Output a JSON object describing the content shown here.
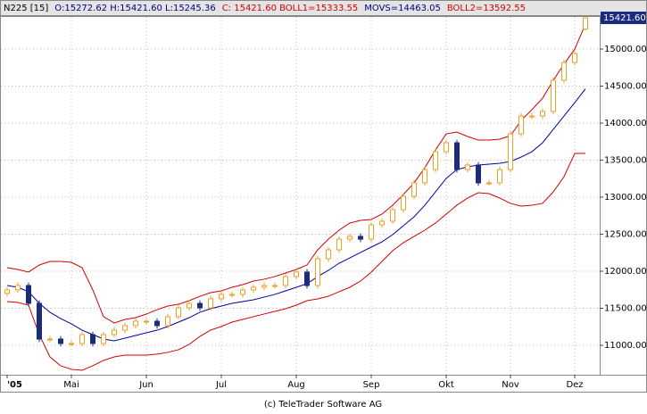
{
  "chart_data": {
    "type": "candlestick",
    "header": [
      "N225 [15]",
      "O:15272.62 H:15421.60 L:15245.36",
      "C: 15421.60 BOLL1=15333.55",
      "MOVS=14463.05",
      "BOLL2=13592.55"
    ],
    "header_colors": [
      "#000000",
      "#000080",
      "#d00000",
      "#000080",
      "#d00000"
    ],
    "last_price_label": "15421.60",
    "footer": "(c) TeleTrader Software AG",
    "categories": [
      "'05",
      null,
      null,
      null,
      null,
      null,
      "Mai",
      null,
      null,
      null,
      null,
      null,
      null,
      "Jun",
      null,
      null,
      null,
      null,
      null,
      null,
      "Jul",
      null,
      null,
      null,
      null,
      null,
      null,
      "Aug",
      null,
      null,
      null,
      null,
      null,
      null,
      "Sep",
      null,
      null,
      null,
      null,
      null,
      null,
      "Okt",
      null,
      null,
      null,
      null,
      null,
      "Nov",
      null,
      null,
      null,
      null,
      null,
      "Dez",
      null
    ],
    "open": [
      11700,
      11747,
      11807,
      11566,
      11084,
      11084,
      11024,
      11024,
      11144,
      11024,
      11144,
      11205,
      11265,
      11325,
      11325,
      11265,
      11386,
      11506,
      11566,
      11506,
      11627,
      11687,
      11687,
      11747,
      11783,
      11807,
      11807,
      11928,
      11988,
      11807,
      12169,
      12289,
      12433,
      12470,
      12433,
      12626,
      12675,
      12831,
      13012,
      13193,
      13373,
      13614,
      13735,
      13373,
      13434,
      13193,
      13193,
      13373,
      13855,
      14096,
      14096,
      14157,
      14578,
      14819,
      15272.62
    ],
    "high": [
      11787,
      11847,
      11847,
      11606,
      11124,
      11124,
      11064,
      11184,
      11184,
      11184,
      11245,
      11305,
      11365,
      11365,
      11365,
      11426,
      11546,
      11606,
      11606,
      11667,
      11727,
      11727,
      11787,
      11823,
      11847,
      11847,
      11968,
      12028,
      12028,
      12209,
      12329,
      12473,
      12510,
      12510,
      12666,
      12715,
      12871,
      13052,
      13233,
      13413,
      13654,
      13775,
      13775,
      13474,
      13474,
      13233,
      13413,
      13895,
      14136,
      14136,
      14197,
      14618,
      14859,
      14980,
      15421.6
    ],
    "low": [
      11660,
      11707,
      11526,
      11044,
      11044,
      10984,
      10984,
      10984,
      10984,
      10984,
      11104,
      11165,
      11225,
      11285,
      11225,
      11225,
      11346,
      11466,
      11466,
      11466,
      11587,
      11647,
      11647,
      11707,
      11743,
      11767,
      11767,
      11888,
      11767,
      11767,
      12129,
      12249,
      12393,
      12393,
      12393,
      12586,
      12635,
      12791,
      12972,
      13153,
      13333,
      13574,
      13333,
      13333,
      13153,
      13153,
      13153,
      13333,
      13815,
      14056,
      14056,
      14117,
      14538,
      14779,
      15245.36
    ],
    "close": [
      11747,
      11807,
      11566,
      11084,
      11084,
      11024,
      11024,
      11144,
      11024,
      11144,
      11205,
      11265,
      11325,
      11325,
      11265,
      11386,
      11506,
      11566,
      11506,
      11627,
      11687,
      11687,
      11747,
      11783,
      11807,
      11807,
      11928,
      11988,
      11807,
      12169,
      12289,
      12433,
      12470,
      12433,
      12626,
      12675,
      12831,
      13012,
      13193,
      13373,
      13614,
      13735,
      13373,
      13434,
      13193,
      13193,
      13373,
      13855,
      14096,
      14096,
      14157,
      14578,
      14819,
      14940,
      15421.6
    ],
    "up_color": "#f0a020",
    "down_color": "#1c2a80",
    "overlays": [
      {
        "color": "#d00000",
        "values": [
          12048,
          12024,
          11988,
          12084,
          12132,
          12132,
          12120,
          12048,
          11747,
          11386,
          11301,
          11349,
          11373,
          11421,
          11481,
          11530,
          11554,
          11602,
          11662,
          11711,
          11735,
          11783,
          11819,
          11867,
          11892,
          11928,
          11976,
          12024,
          12084,
          12289,
          12434,
          12554,
          12651,
          12687,
          12699,
          12771,
          12892,
          13036,
          13193,
          13397,
          13638,
          13855,
          13879,
          13819,
          13771,
          13771,
          13783,
          13831,
          14036,
          14181,
          14337,
          14578,
          14795,
          15000,
          15333.55
        ]
      },
      {
        "color": "#0000a0",
        "values": [
          11807,
          11783,
          11723,
          11566,
          11446,
          11361,
          11289,
          11204,
          11144,
          11084,
          11060,
          11096,
          11132,
          11168,
          11204,
          11253,
          11313,
          11373,
          11446,
          11494,
          11530,
          11566,
          11590,
          11614,
          11651,
          11687,
          11735,
          11783,
          11831,
          11928,
          12012,
          12108,
          12180,
          12253,
          12325,
          12397,
          12494,
          12614,
          12735,
          12891,
          13072,
          13253,
          13373,
          13409,
          13434,
          13446,
          13458,
          13482,
          13542,
          13614,
          13735,
          13916,
          14096,
          14277,
          14463.05
        ]
      },
      {
        "color": "#d00000",
        "values": [
          11590,
          11578,
          11542,
          11144,
          10843,
          10723,
          10675,
          10663,
          10723,
          10795,
          10843,
          10867,
          10867,
          10867,
          10880,
          10904,
          10940,
          11012,
          11120,
          11205,
          11253,
          11313,
          11349,
          11386,
          11422,
          11458,
          11494,
          11542,
          11602,
          11626,
          11662,
          11723,
          11783,
          11867,
          11988,
          12132,
          12277,
          12385,
          12470,
          12554,
          12651,
          12771,
          12892,
          12988,
          13060,
          13048,
          12988,
          12916,
          12880,
          12892,
          12916,
          13072,
          13277,
          13591,
          13592.55
        ]
      }
    ],
    "ylim": [
      10602,
      15446
    ],
    "yticks": [
      {
        "value": 11000,
        "label": "11000.00"
      },
      {
        "value": 11500,
        "label": "11500.00"
      },
      {
        "value": 12000,
        "label": "12000.00"
      },
      {
        "value": 12500,
        "label": "12500.00"
      },
      {
        "value": 13000,
        "label": "13000.00"
      },
      {
        "value": 13500,
        "label": "13500.00"
      },
      {
        "value": 14000,
        "label": "14000.00"
      },
      {
        "value": 14500,
        "label": "14500.00"
      },
      {
        "value": 15000,
        "label": "15000.00"
      }
    ],
    "grid": true
  }
}
